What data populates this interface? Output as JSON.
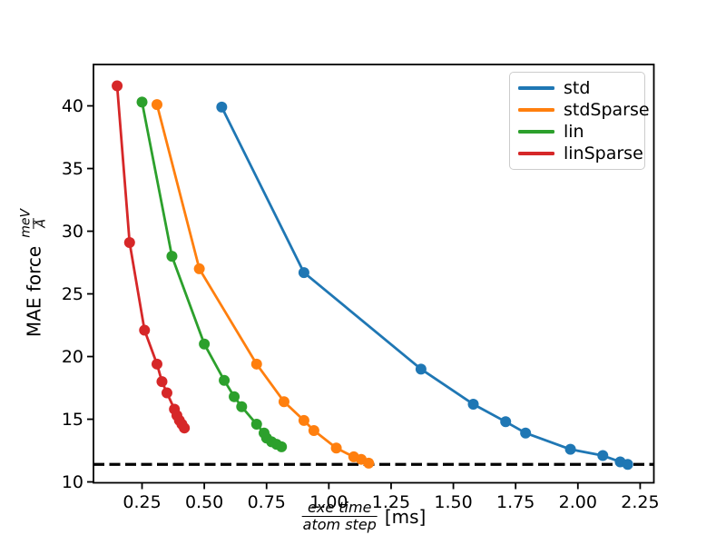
{
  "chart_data": {
    "type": "line",
    "title": "",
    "xlabel": {
      "numerator": "exe time",
      "denominator": "atom step",
      "unit": "[ms]"
    },
    "ylabel": {
      "prefix": "MAE force",
      "numerator": "meV",
      "denominator": "Å"
    },
    "xlim": [
      0.055,
      2.305
    ],
    "ylim": [
      9.93,
      43.3
    ],
    "xticks": {
      "values": [
        0.25,
        0.5,
        0.75,
        1.0,
        1.25,
        1.5,
        1.75,
        2.0,
        2.25
      ],
      "labels": [
        "0.25",
        "0.50",
        "0.75",
        "1.00",
        "1.25",
        "1.50",
        "1.75",
        "2.00",
        "2.25"
      ]
    },
    "yticks": {
      "values": [
        10,
        15,
        20,
        25,
        30,
        35,
        40
      ],
      "labels": [
        "10",
        "15",
        "20",
        "25",
        "30",
        "35",
        "40"
      ]
    },
    "grid": false,
    "legend": {
      "position": "upper right",
      "entries": [
        "std",
        "stdSparse",
        "lin",
        "linSparse"
      ]
    },
    "threshold": {
      "y": 11.4,
      "style": "dashed",
      "color": "#000000"
    },
    "series": [
      {
        "name": "std",
        "color": "#1f77b4",
        "points": [
          [
            0.57,
            39.9
          ],
          [
            0.9,
            26.7
          ],
          [
            1.37,
            19.0
          ],
          [
            1.58,
            16.2
          ],
          [
            1.71,
            14.8
          ],
          [
            1.79,
            13.9
          ],
          [
            1.97,
            12.6
          ],
          [
            2.1,
            12.1
          ],
          [
            2.17,
            11.6
          ],
          [
            2.2,
            11.4
          ]
        ]
      },
      {
        "name": "stdSparse",
        "color": "#ff7f0e",
        "points": [
          [
            0.31,
            40.1
          ],
          [
            0.48,
            27.0
          ],
          [
            0.71,
            19.4
          ],
          [
            0.82,
            16.4
          ],
          [
            0.9,
            14.9
          ],
          [
            0.94,
            14.1
          ],
          [
            1.03,
            12.7
          ],
          [
            1.1,
            12.0
          ],
          [
            1.13,
            11.8
          ],
          [
            1.16,
            11.5
          ]
        ]
      },
      {
        "name": "lin",
        "color": "#2ca02c",
        "points": [
          [
            0.25,
            40.3
          ],
          [
            0.37,
            28.0
          ],
          [
            0.5,
            21.0
          ],
          [
            0.58,
            18.1
          ],
          [
            0.62,
            16.8
          ],
          [
            0.65,
            16.0
          ],
          [
            0.71,
            14.6
          ],
          [
            0.74,
            13.9
          ],
          [
            0.75,
            13.5
          ],
          [
            0.77,
            13.2
          ],
          [
            0.79,
            13.0
          ],
          [
            0.81,
            12.8
          ]
        ]
      },
      {
        "name": "linSparse",
        "color": "#d62728",
        "points": [
          [
            0.15,
            41.6
          ],
          [
            0.2,
            29.1
          ],
          [
            0.26,
            22.1
          ],
          [
            0.31,
            19.4
          ],
          [
            0.33,
            18.0
          ],
          [
            0.35,
            17.1
          ],
          [
            0.38,
            15.8
          ],
          [
            0.39,
            15.3
          ],
          [
            0.4,
            14.9
          ],
          [
            0.41,
            14.6
          ],
          [
            0.42,
            14.3
          ]
        ]
      }
    ]
  }
}
